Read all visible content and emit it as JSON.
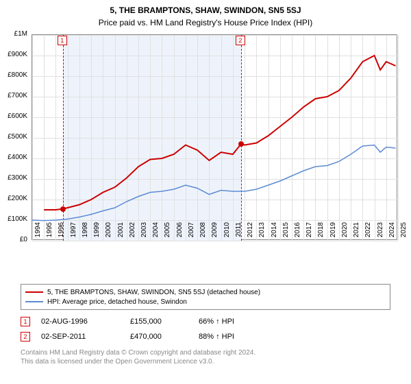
{
  "title": "5, THE BRAMPTONS, SHAW, SWINDON, SN5 5SJ",
  "subtitle": "Price paid vs. HM Land Registry's House Price Index (HPI)",
  "chart": {
    "type": "line",
    "background_color": "#ffffff",
    "grid_color": "#e0e0e0",
    "border_color": "#888888",
    "xlim": [
      1994,
      2025
    ],
    "ylim": [
      0,
      1000000
    ],
    "ytick_step": 100000,
    "ytick_labels": [
      "£0",
      "£100K",
      "£200K",
      "£300K",
      "£400K",
      "£500K",
      "£600K",
      "£700K",
      "£800K",
      "£900K",
      "£1M"
    ],
    "xticks": [
      1994,
      1995,
      1996,
      1997,
      1998,
      1999,
      2000,
      2001,
      2002,
      2003,
      2004,
      2005,
      2006,
      2007,
      2008,
      2009,
      2010,
      2011,
      2012,
      2013,
      2014,
      2015,
      2016,
      2017,
      2018,
      2019,
      2020,
      2021,
      2022,
      2023,
      2024,
      2025
    ],
    "event_band": {
      "from": 1996.6,
      "to": 2011.7,
      "color": "#eef3fb"
    },
    "series": [
      {
        "name": "price_paid",
        "label": "5, THE BRAMPTONS, SHAW, SWINDON, SN5 5SJ (detached house)",
        "color": "#cc0000",
        "line_width": 2,
        "points": [
          [
            1995,
            150000
          ],
          [
            1996,
            150000
          ],
          [
            1996.6,
            155000
          ],
          [
            1997,
            160000
          ],
          [
            1998,
            175000
          ],
          [
            1999,
            200000
          ],
          [
            2000,
            235000
          ],
          [
            2001,
            260000
          ],
          [
            2002,
            305000
          ],
          [
            2003,
            360000
          ],
          [
            2004,
            395000
          ],
          [
            2005,
            400000
          ],
          [
            2006,
            420000
          ],
          [
            2007,
            465000
          ],
          [
            2008,
            440000
          ],
          [
            2009,
            390000
          ],
          [
            2010,
            430000
          ],
          [
            2011,
            420000
          ],
          [
            2011.7,
            470000
          ],
          [
            2012,
            465000
          ],
          [
            2013,
            475000
          ],
          [
            2014,
            510000
          ],
          [
            2015,
            555000
          ],
          [
            2016,
            600000
          ],
          [
            2017,
            650000
          ],
          [
            2018,
            690000
          ],
          [
            2019,
            700000
          ],
          [
            2020,
            730000
          ],
          [
            2021,
            790000
          ],
          [
            2022,
            870000
          ],
          [
            2023,
            900000
          ],
          [
            2023.5,
            830000
          ],
          [
            2024,
            870000
          ],
          [
            2024.8,
            850000
          ]
        ]
      },
      {
        "name": "hpi",
        "label": "HPI: Average price, detached house, Swindon",
        "color": "#5b8bd4",
        "line_width": 1.5,
        "points": [
          [
            1994,
            100000
          ],
          [
            1995,
            98000
          ],
          [
            1996,
            100000
          ],
          [
            1997,
            105000
          ],
          [
            1998,
            115000
          ],
          [
            1999,
            128000
          ],
          [
            2000,
            145000
          ],
          [
            2001,
            160000
          ],
          [
            2002,
            190000
          ],
          [
            2003,
            215000
          ],
          [
            2004,
            235000
          ],
          [
            2005,
            240000
          ],
          [
            2006,
            250000
          ],
          [
            2007,
            270000
          ],
          [
            2008,
            255000
          ],
          [
            2009,
            225000
          ],
          [
            2010,
            245000
          ],
          [
            2011,
            240000
          ],
          [
            2012,
            240000
          ],
          [
            2013,
            250000
          ],
          [
            2014,
            270000
          ],
          [
            2015,
            290000
          ],
          [
            2016,
            315000
          ],
          [
            2017,
            340000
          ],
          [
            2018,
            360000
          ],
          [
            2019,
            365000
          ],
          [
            2020,
            385000
          ],
          [
            2021,
            420000
          ],
          [
            2022,
            460000
          ],
          [
            2023,
            465000
          ],
          [
            2023.5,
            430000
          ],
          [
            2024,
            455000
          ],
          [
            2024.8,
            450000
          ]
        ]
      }
    ],
    "event_markers": [
      {
        "n": "1",
        "x": 1996.6,
        "y": 155000,
        "color": "#cc0000"
      },
      {
        "n": "2",
        "x": 2011.7,
        "y": 470000,
        "color": "#cc0000"
      }
    ],
    "marker_top_boxes": [
      {
        "n": "1",
        "x": 1996.6
      },
      {
        "n": "2",
        "x": 2011.7
      }
    ],
    "dashed_line_color": "#cc0000"
  },
  "legend": [
    {
      "color": "#cc0000",
      "width": 2,
      "label": "5, THE BRAMPTONS, SHAW, SWINDON, SN5 5SJ (detached house)"
    },
    {
      "color": "#5b8bd4",
      "width": 1.5,
      "label": "HPI: Average price, detached house, Swindon"
    }
  ],
  "events": [
    {
      "n": "1",
      "date": "02-AUG-1996",
      "price": "£155,000",
      "delta": "66% ↑ HPI"
    },
    {
      "n": "2",
      "date": "02-SEP-2011",
      "price": "£470,000",
      "delta": "88% ↑ HPI"
    }
  ],
  "footer_line1": "Contains HM Land Registry data © Crown copyright and database right 2024.",
  "footer_line2": "This data is licensed under the Open Government Licence v3.0."
}
